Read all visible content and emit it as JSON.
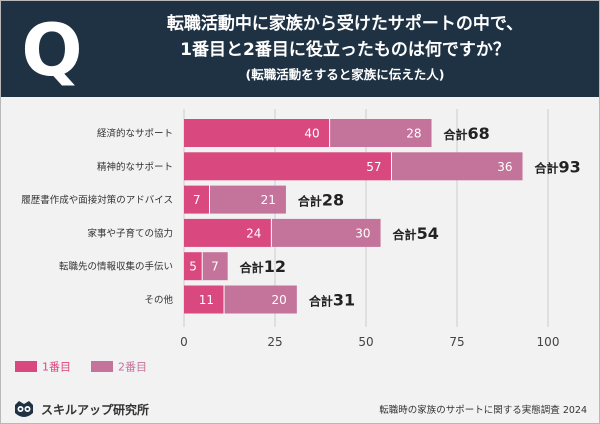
{
  "header": {
    "q_letter": "Q",
    "title_line1": "転職活動中に家族から受けたサポートの中で、",
    "title_line2": "1番目と2番目に役立ったものは何ですか？",
    "subtitle": "(転職活動をすると家族に伝えた人)"
  },
  "chart_data": {
    "type": "bar",
    "orientation": "horizontal",
    "stacked": true,
    "categories": [
      "経済的なサポート",
      "精神的なサポート",
      "履歴書作成や面接対策のアドバイス",
      "家事や子育ての協力",
      "転職先の情報収集の手伝い",
      "その他"
    ],
    "series": [
      {
        "name": "1番目",
        "values": [
          40,
          57,
          7,
          24,
          5,
          11
        ],
        "color": "#d9487e"
      },
      {
        "name": "2番目",
        "values": [
          28,
          36,
          21,
          30,
          7,
          20
        ],
        "color": "#c4739a"
      }
    ],
    "total_prefix": "合計",
    "totals": [
      "68",
      "93",
      "28",
      "54",
      "12",
      "31"
    ],
    "xlim": [
      0,
      100
    ],
    "xticks": [
      "0",
      "25",
      "50",
      "75",
      "100"
    ],
    "gridlines": true,
    "legend_position": "bottom-left"
  },
  "footer": {
    "brand": "スキルアップ研究所",
    "source": "転職時の家族のサポートに関する実態調査 2024"
  },
  "colors": {
    "header_bg": "#1f3244",
    "background": "#f2f2f2",
    "label_text": "#333333"
  }
}
